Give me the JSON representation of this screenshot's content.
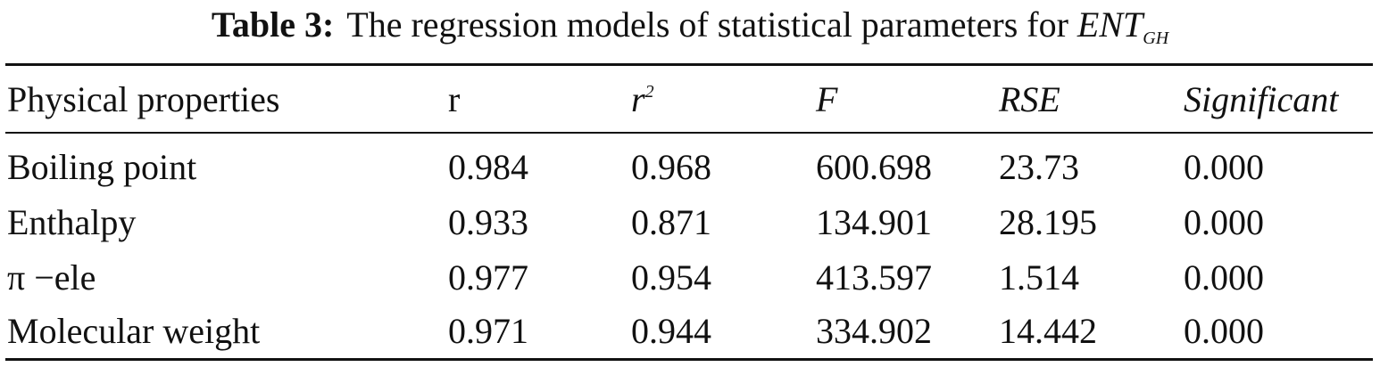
{
  "caption": {
    "label": "Table 3:",
    "text": "The regression models of statistical parameters for",
    "symbol": "ENT",
    "symbol_subscript": "GH"
  },
  "table": {
    "headers": {
      "property": "Physical properties",
      "r": "r",
      "r2_base": "r",
      "r2_exp": "2",
      "F": "F",
      "RSE": "RSE",
      "significant": "Significant"
    },
    "rows": [
      {
        "property": "Boiling point",
        "r": "0.984",
        "r2": "0.968",
        "F": "600.698",
        "RSE": "23.73",
        "significant": "0.000"
      },
      {
        "property": "Enthalpy",
        "r": "0.933",
        "r2": "0.871",
        "F": "134.901",
        "RSE": "28.195",
        "significant": "0.000"
      },
      {
        "property": "π −ele",
        "r": "0.977",
        "r2": "0.954",
        "F": "413.597",
        "RSE": "1.514",
        "significant": "0.000"
      },
      {
        "property": "Molecular weight",
        "r": "0.971",
        "r2": "0.944",
        "F": "334.902",
        "RSE": "14.442",
        "significant": "0.000"
      }
    ]
  }
}
